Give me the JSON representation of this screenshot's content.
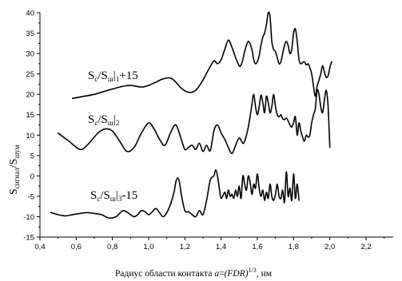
{
  "chart_data": {
    "type": "line",
    "xlim": [
      0.4,
      2.35
    ],
    "ylim": [
      -15,
      40
    ],
    "x_ticks": [
      0.4,
      0.6,
      0.8,
      1.0,
      1.2,
      1.4,
      1.6,
      1.8,
      2.0,
      2.2
    ],
    "x_tick_labels": [
      "0,4",
      "0,6",
      "0,8",
      "1,0",
      "1,2",
      "1,4",
      "1,6",
      "1,8",
      "2,0",
      "2,2"
    ],
    "y_ticks": [
      -15,
      -10,
      -5,
      0,
      5,
      10,
      15,
      20,
      25,
      30,
      35,
      40
    ],
    "y_tick_labels": [
      "-15",
      "-10",
      "-5",
      "0",
      "5",
      "10",
      "15",
      "20",
      "25",
      "30",
      "35",
      "40"
    ],
    "xlabel": {
      "prefix": "Радиус области контакта ",
      "formula_var": "a",
      "formula_eq": "=",
      "formula_body": "(FDR)",
      "formula_exp": "1/3",
      "suffix": ", нм"
    },
    "ylabel": {
      "s1": "S",
      "sub1": "сигнал",
      "slash": "/",
      "s2": "S",
      "sub2": "шум"
    },
    "series_labels": [
      {
        "s": "S",
        "c": "c",
        "sl": "/",
        "s2": "S",
        "sh": "ш",
        "idx": "1",
        "tail": "+15"
      },
      {
        "s": "S",
        "c": "c",
        "sl": "/",
        "s2": "S",
        "sh": "ш",
        "idx": "2",
        "tail": ""
      },
      {
        "s": "S",
        "c": "c",
        "sl": "/",
        "s2": "S",
        "sh": "ш",
        "idx": "3",
        "tail": "-15"
      }
    ],
    "series": [
      {
        "x": [
          0.58,
          0.64,
          0.7,
          0.76,
          0.8,
          0.86,
          0.9,
          0.96,
          1.0,
          1.04,
          1.08,
          1.12,
          1.15,
          1.18,
          1.22,
          1.26,
          1.3,
          1.33,
          1.36,
          1.38,
          1.4,
          1.42,
          1.44,
          1.46,
          1.48,
          1.5,
          1.51,
          1.52,
          1.53,
          1.55,
          1.57,
          1.58,
          1.59,
          1.6,
          1.61,
          1.62,
          1.63,
          1.64,
          1.65,
          1.66,
          1.67,
          1.68,
          1.69,
          1.7,
          1.71,
          1.72,
          1.73,
          1.74,
          1.75,
          1.76,
          1.77,
          1.78,
          1.79,
          1.8,
          1.81,
          1.82,
          1.83,
          1.84,
          1.85,
          1.86,
          1.87,
          1.88,
          1.89,
          1.9,
          1.91,
          1.92,
          1.93,
          1.94,
          1.95,
          1.96,
          1.97,
          1.98,
          1.99,
          2.0,
          2.01
        ],
        "y": [
          19.0,
          19.5,
          20.0,
          20.8,
          21.3,
          22.0,
          22.2,
          21.8,
          22.2,
          23.0,
          23.8,
          24.0,
          23.0,
          21.5,
          20.5,
          21.0,
          23.5,
          26.0,
          28.2,
          27.5,
          28.5,
          31.0,
          33.3,
          31.5,
          29.0,
          27.0,
          27.2,
          28.5,
          30.5,
          33.0,
          31.0,
          28.5,
          27.5,
          28.0,
          29.5,
          32.0,
          34.0,
          35.0,
          37.0,
          40.0,
          39.0,
          33.0,
          31.0,
          30.5,
          29.0,
          27.5,
          28.0,
          30.0,
          32.0,
          33.0,
          32.0,
          30.0,
          31.0,
          35.0,
          36.0,
          33.0,
          28.5,
          27.5,
          27.8,
          28.0,
          27.2,
          27.5,
          26.5,
          25.0,
          22.0,
          19.5,
          22.0,
          23.5,
          25.0,
          27.0,
          25.5,
          24.2,
          24.5,
          26.5,
          28.0
        ]
      },
      {
        "x": [
          0.5,
          0.56,
          0.62,
          0.66,
          0.72,
          0.76,
          0.8,
          0.84,
          0.88,
          0.92,
          0.96,
          1.0,
          1.03,
          1.06,
          1.09,
          1.12,
          1.15,
          1.18,
          1.2,
          1.22,
          1.24,
          1.26,
          1.28,
          1.3,
          1.32,
          1.34,
          1.36,
          1.38,
          1.4,
          1.42,
          1.44,
          1.46,
          1.48,
          1.5,
          1.52,
          1.53,
          1.54,
          1.55,
          1.56,
          1.57,
          1.58,
          1.59,
          1.6,
          1.61,
          1.62,
          1.63,
          1.64,
          1.65,
          1.66,
          1.67,
          1.68,
          1.69,
          1.7,
          1.71,
          1.72,
          1.73,
          1.74,
          1.75,
          1.76,
          1.77,
          1.78,
          1.79,
          1.8,
          1.81,
          1.82,
          1.83,
          1.84,
          1.85,
          1.86,
          1.87,
          1.88,
          1.89,
          1.9,
          1.91,
          1.92,
          1.93,
          1.94,
          1.95,
          1.96,
          1.97,
          1.98,
          1.99,
          2.0
        ],
        "y": [
          10.5,
          8.5,
          6.5,
          7.5,
          10.5,
          11.5,
          11.0,
          8.5,
          6.0,
          7.0,
          10.5,
          13.0,
          11.5,
          9.0,
          7.5,
          10.5,
          12.5,
          9.0,
          6.5,
          7.0,
          7.5,
          6.5,
          8.0,
          6.0,
          7.5,
          6.2,
          11.0,
          12.5,
          10.5,
          9.0,
          7.0,
          5.5,
          7.5,
          9.3,
          8.0,
          8.5,
          10.0,
          12.0,
          14.5,
          17.5,
          20.0,
          17.0,
          15.0,
          17.0,
          19.8,
          18.0,
          15.5,
          19.5,
          18.0,
          15.5,
          17.0,
          20.0,
          17.0,
          15.0,
          14.5,
          15.0,
          14.0,
          13.8,
          14.2,
          13.5,
          12.5,
          12.0,
          13.0,
          14.5,
          10.0,
          13.0,
          11.0,
          9.5,
          8.5,
          10.0,
          9.5,
          10.0,
          13.0,
          15.0,
          16.5,
          21.0,
          20.0,
          17.0,
          15.5,
          18.5,
          21.0,
          17.5,
          7.0
        ]
      },
      {
        "x": [
          0.46,
          0.5,
          0.54,
          0.58,
          0.62,
          0.66,
          0.7,
          0.74,
          0.78,
          0.82,
          0.86,
          0.9,
          0.92,
          0.94,
          0.96,
          0.98,
          1.0,
          1.02,
          1.04,
          1.06,
          1.08,
          1.1,
          1.12,
          1.14,
          1.15,
          1.16,
          1.17,
          1.18,
          1.2,
          1.22,
          1.24,
          1.26,
          1.28,
          1.3,
          1.32,
          1.34,
          1.36,
          1.37,
          1.38,
          1.39,
          1.4,
          1.42,
          1.43,
          1.44,
          1.45,
          1.46,
          1.47,
          1.48,
          1.49,
          1.5,
          1.51,
          1.52,
          1.53,
          1.54,
          1.55,
          1.56,
          1.57,
          1.58,
          1.59,
          1.6,
          1.61,
          1.62,
          1.63,
          1.64,
          1.65,
          1.66,
          1.67,
          1.68,
          1.69,
          1.7,
          1.71,
          1.72,
          1.73,
          1.74,
          1.75,
          1.76,
          1.77,
          1.78,
          1.79,
          1.8,
          1.81,
          1.82,
          1.83
        ],
        "y": [
          -9.0,
          -9.5,
          -9.8,
          -9.5,
          -9.2,
          -9.0,
          -9.2,
          -9.5,
          -10.3,
          -10.0,
          -8.5,
          -9.5,
          -10.0,
          -9.5,
          -8.5,
          -8.8,
          -9.5,
          -8.8,
          -8.0,
          -9.0,
          -10.0,
          -9.0,
          -7.0,
          -4.0,
          -1.5,
          -0.5,
          -1.5,
          -4.5,
          -8.5,
          -8.8,
          -9.5,
          -10.0,
          -8.5,
          -9.5,
          -6.0,
          -1.0,
          0.0,
          1.5,
          0.0,
          -3.0,
          -5.5,
          -4.0,
          -5.5,
          -3.5,
          -5.0,
          -4.5,
          -5.5,
          -3.5,
          -5.0,
          -2.5,
          -5.5,
          0.0,
          -2.0,
          -3.5,
          0.0,
          -1.5,
          -4.5,
          -2.0,
          -3.0,
          0.5,
          -3.0,
          -5.0,
          -3.5,
          -6.0,
          -4.0,
          -5.5,
          -2.0,
          -5.0,
          -6.0,
          -4.5,
          -2.0,
          -5.0,
          -5.5,
          -3.5,
          -6.5,
          1.0,
          -5.0,
          -3.0,
          -6.0,
          0.5,
          -5.5,
          -2.0,
          -6.0
        ]
      }
    ]
  }
}
